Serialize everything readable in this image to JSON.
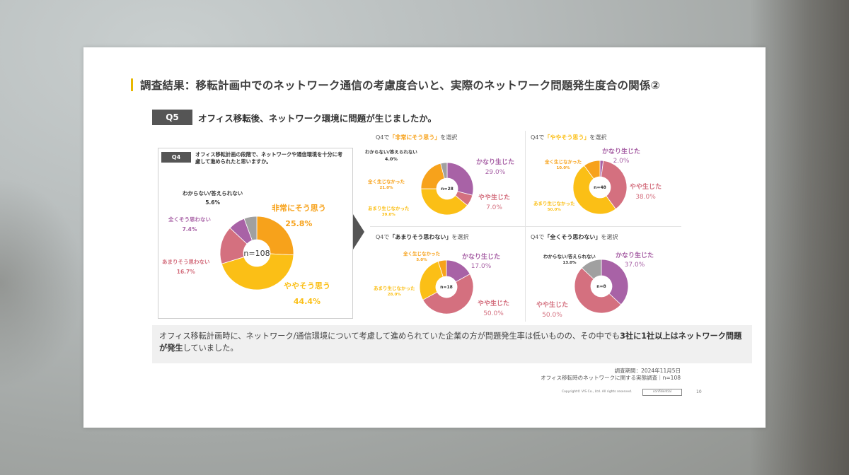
{
  "slide": {
    "title": "調査結果：移転計画中でのネットワーク通信の考慮度合いと、実際のネットワーク問題発生度合の関係②",
    "q5": {
      "badge": "Q5",
      "text": "オフィス移転後、ネットワーク環境に問題が生じましたか。"
    },
    "q4": {
      "badge": "Q4",
      "text": "オフィス移転計画の段階で、ネットワークや通信環境を十分に考慮して進められたと思いますか。"
    },
    "summary": {
      "part1": "オフィス移転計画時に、ネットワーク/通信環境について考慮して進められていた企業の方が問題発生率は低いものの、その中でも",
      "bold1": "3社に1社以上はネットワーク問題が発生",
      "part2": "していました。"
    },
    "source": {
      "line1": "調査期間：2024年11月5日",
      "line2": "オフィス移転時のネットワークに関する実態調査｜n=108"
    },
    "footer": {
      "copyright": "Copyright© VIS Co., Ltd. All rights reserved.",
      "confidential": "confidential",
      "page": "10"
    }
  },
  "colors": {
    "very_much": "#f7a21b",
    "somewhat": "#fbbf16",
    "not_much": "#d4707f",
    "not_at_all": "#a862a6",
    "unknown": "#a0a0a0",
    "severe": "#a862a6",
    "some": "#d4707f",
    "not_much_occ": "#fbbf16",
    "none": "#f7a21b",
    "accent": "#e8b800"
  },
  "chart_data": [
    {
      "type": "pie",
      "variant": "donut",
      "title": "Q4 オフィス移転計画の段階で、ネットワークや通信環境を十分に考慮して進められたと思いますか。",
      "center_label": "n=108",
      "categories": [
        "非常にそう思う",
        "ややそう思う",
        "あまりそう思わない",
        "全くそう思わない",
        "わからない/答えられない"
      ],
      "values": [
        25.8,
        44.4,
        16.7,
        7.4,
        5.6
      ],
      "value_labels": [
        "25.8%",
        "44.4%",
        "16.7%",
        "7.4%",
        "5.6%"
      ],
      "colors": [
        "#f7a21b",
        "#fbbf16",
        "#d4707f",
        "#a862a6",
        "#a0a0a0"
      ]
    },
    {
      "type": "pie",
      "variant": "donut",
      "title": "Q4で「非常にそう思う」を選択",
      "title_prefix": "Q4で",
      "title_highlight": "「非常にそう思う」",
      "title_suffix": "を選択",
      "center_label": "n=28",
      "categories": [
        "かなり生じた",
        "やや生じた",
        "あまり生じなかった",
        "全く生じなかった",
        "わからない/答えられない"
      ],
      "values": [
        29.0,
        7.0,
        39.0,
        21.0,
        4.0
      ],
      "value_labels": [
        "29.0%",
        "7.0%",
        "39.0%",
        "21.0%",
        "4.0%"
      ],
      "colors": [
        "#a862a6",
        "#d4707f",
        "#fbbf16",
        "#f7a21b",
        "#a0a0a0"
      ]
    },
    {
      "type": "pie",
      "variant": "donut",
      "title": "Q4で「ややそう思う」を選択",
      "title_prefix": "Q4で",
      "title_highlight": "「ややそう思う」",
      "title_suffix": "を選択",
      "center_label": "n=48",
      "categories": [
        "かなり生じた",
        "やや生じた",
        "あまり生じなかった",
        "全く生じなかった"
      ],
      "values": [
        2.0,
        38.0,
        50.0,
        10.0
      ],
      "value_labels": [
        "2.0%",
        "38.0%",
        "50.0%",
        "10.0%"
      ],
      "colors": [
        "#a862a6",
        "#d4707f",
        "#fbbf16",
        "#f7a21b"
      ]
    },
    {
      "type": "pie",
      "variant": "donut",
      "title": "Q4で「あまりそう思わない」を選択",
      "title_prefix": "Q4で",
      "title_highlight": "「あまりそう思わない」",
      "title_suffix": "を選択",
      "center_label": "n=18",
      "categories": [
        "かなり生じた",
        "やや生じた",
        "あまり生じなかった",
        "全く生じなかった"
      ],
      "values": [
        17.0,
        50.0,
        28.0,
        5.0
      ],
      "value_labels": [
        "17.0%",
        "50.0%",
        "28.0%",
        "5.0%"
      ],
      "colors": [
        "#a862a6",
        "#d4707f",
        "#fbbf16",
        "#f7a21b"
      ]
    },
    {
      "type": "pie",
      "variant": "donut",
      "title": "Q4で「全くそう思わない」を選択",
      "title_prefix": "Q4で",
      "title_highlight": "「全くそう思わない」",
      "title_suffix": "を選択",
      "center_label": "n=8",
      "categories": [
        "かなり生じた",
        "やや生じた",
        "わからない/答えられない"
      ],
      "values": [
        37.0,
        50.0,
        13.0
      ],
      "value_labels": [
        "37.0%",
        "50.0%",
        "13.0%"
      ],
      "colors": [
        "#a862a6",
        "#d4707f",
        "#a0a0a0"
      ]
    }
  ]
}
